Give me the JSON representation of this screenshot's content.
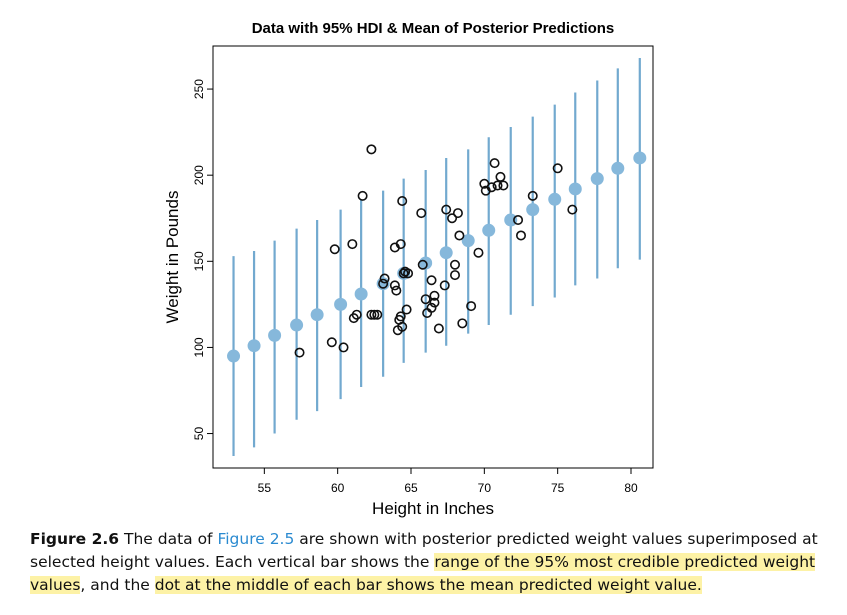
{
  "chart_data": {
    "type": "scatter",
    "title": "Data with 95% HDI & Mean of Posterior Predictions",
    "xlabel": "Height in Inches",
    "ylabel": "Weight in Pounds",
    "xlim": [
      51.5,
      81.5
    ],
    "ylim": [
      30,
      275
    ],
    "xticks": [
      55,
      60,
      65,
      70,
      75,
      80
    ],
    "yticks": [
      50,
      100,
      150,
      200,
      250
    ],
    "grid": false,
    "colors": {
      "hdi_bar": "#72a9cf",
      "mean_dot": "#86b8db",
      "data_point": "#111111"
    },
    "series": [
      {
        "marker": "hdi-interval-with-mean",
        "points": [
          {
            "x": 52.9,
            "mean": 95,
            "low": 37,
            "high": 153
          },
          {
            "x": 54.3,
            "mean": 101,
            "low": 42,
            "high": 156
          },
          {
            "x": 55.7,
            "mean": 107,
            "low": 50,
            "high": 162
          },
          {
            "x": 57.2,
            "mean": 113,
            "low": 58,
            "high": 169
          },
          {
            "x": 58.6,
            "mean": 119,
            "low": 63,
            "high": 174
          },
          {
            "x": 60.2,
            "mean": 125,
            "low": 70,
            "high": 180
          },
          {
            "x": 61.6,
            "mean": 131,
            "low": 77,
            "high": 186
          },
          {
            "x": 63.1,
            "mean": 137,
            "low": 83,
            "high": 191
          },
          {
            "x": 64.5,
            "mean": 143,
            "low": 91,
            "high": 198
          },
          {
            "x": 66.0,
            "mean": 149,
            "low": 97,
            "high": 203
          },
          {
            "x": 67.4,
            "mean": 155,
            "low": 101,
            "high": 210
          },
          {
            "x": 68.9,
            "mean": 162,
            "low": 108,
            "high": 215
          },
          {
            "x": 70.3,
            "mean": 168,
            "low": 113,
            "high": 222
          },
          {
            "x": 71.8,
            "mean": 174,
            "low": 119,
            "high": 228
          },
          {
            "x": 73.3,
            "mean": 180,
            "low": 124,
            "high": 234
          },
          {
            "x": 74.8,
            "mean": 186,
            "low": 129,
            "high": 241
          },
          {
            "x": 76.2,
            "mean": 192,
            "low": 136,
            "high": 248
          },
          {
            "x": 77.7,
            "mean": 198,
            "low": 140,
            "high": 255
          },
          {
            "x": 79.1,
            "mean": 204,
            "low": 146,
            "high": 262
          },
          {
            "x": 80.6,
            "mean": 210,
            "low": 151,
            "high": 268
          }
        ]
      },
      {
        "marker": "open-circle",
        "points": [
          [
            57.4,
            97
          ],
          [
            59.6,
            103
          ],
          [
            60.4,
            100
          ],
          [
            59.8,
            157
          ],
          [
            61.0,
            160
          ],
          [
            61.7,
            188
          ],
          [
            61.1,
            117
          ],
          [
            61.3,
            119
          ],
          [
            62.3,
            215
          ],
          [
            62.3,
            119
          ],
          [
            62.5,
            119
          ],
          [
            62.7,
            119
          ],
          [
            63.1,
            137
          ],
          [
            63.2,
            140
          ],
          [
            63.9,
            158
          ],
          [
            63.9,
            136
          ],
          [
            64.0,
            133
          ],
          [
            64.1,
            110
          ],
          [
            64.2,
            116
          ],
          [
            64.3,
            118
          ],
          [
            64.3,
            160
          ],
          [
            64.4,
            185
          ],
          [
            64.4,
            112
          ],
          [
            64.5,
            143
          ],
          [
            64.6,
            144
          ],
          [
            64.8,
            143
          ],
          [
            64.7,
            122
          ],
          [
            65.7,
            178
          ],
          [
            65.8,
            148
          ],
          [
            66.0,
            128
          ],
          [
            66.1,
            120
          ],
          [
            66.4,
            123
          ],
          [
            66.4,
            139
          ],
          [
            66.6,
            126
          ],
          [
            66.6,
            130
          ],
          [
            66.9,
            111
          ],
          [
            67.3,
            136
          ],
          [
            67.4,
            180
          ],
          [
            67.8,
            175
          ],
          [
            68.0,
            148
          ],
          [
            68.0,
            142
          ],
          [
            68.2,
            178
          ],
          [
            68.3,
            165
          ],
          [
            68.5,
            114
          ],
          [
            69.1,
            124
          ],
          [
            69.6,
            155
          ],
          [
            70.0,
            195
          ],
          [
            70.1,
            191
          ],
          [
            70.5,
            193
          ],
          [
            70.7,
            207
          ],
          [
            70.9,
            194
          ],
          [
            71.1,
            199
          ],
          [
            71.3,
            194
          ],
          [
            72.3,
            174
          ],
          [
            72.5,
            165
          ],
          [
            73.3,
            188
          ],
          [
            75.0,
            204
          ],
          [
            76.0,
            180
          ]
        ]
      }
    ]
  },
  "caption": {
    "figure_label": "Figure 2.6",
    "text_1": " The data of ",
    "figure_ref": "Figure 2.5",
    "text_2": " are shown with posterior predicted weight values superimposed at selected height values. Each vertical bar shows the ",
    "highlight_1": "range of the 95% most credible predicted weight values",
    "text_3": ", and the ",
    "highlight_2": "dot at the middle of each bar shows the mean predicted weight value."
  }
}
